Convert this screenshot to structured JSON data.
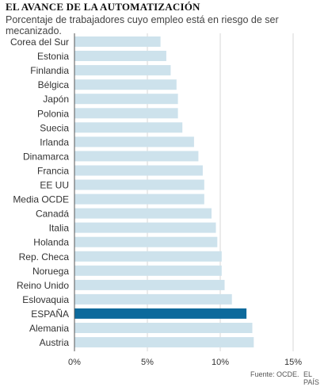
{
  "header": {
    "title": "EL AVANCE DE LA AUTOMATIZACIÓN",
    "subtitle": "Porcentaje de trabajadores cuyo empleo está en riesgo de ser mecanizado."
  },
  "footer": {
    "source": "Fuente: OCDE.",
    "brand": "EL PAÍS"
  },
  "colors": {
    "bar": "#cde2ec",
    "highlight": "#0d6a9c",
    "grid": "#d7d7d7",
    "axis": "#555555"
  },
  "chart_data": {
    "type": "bar",
    "orientation": "horizontal",
    "categories": [
      "Corea del Sur",
      "Estonia",
      "Finlandia",
      "Bélgica",
      "Japón",
      "Polonia",
      "Suecia",
      "Irlanda",
      "Dinamarca",
      "Francia",
      "EE UU",
      "Media OCDE",
      "Canadá",
      "Italia",
      "Holanda",
      "Rep. Checa",
      "Noruega",
      "Reino Unido",
      "Eslovaquia",
      "ESPAÑA",
      "Alemania",
      "Austria"
    ],
    "values": [
      5.9,
      6.3,
      6.6,
      7.0,
      7.1,
      7.1,
      7.4,
      8.2,
      8.5,
      8.8,
      8.9,
      8.9,
      9.4,
      9.7,
      9.8,
      10.1,
      10.1,
      10.3,
      10.8,
      11.8,
      12.2,
      12.3
    ],
    "highlight": "ESPAÑA",
    "xlim": [
      0,
      15
    ],
    "xticks": [
      0,
      5,
      10,
      15
    ],
    "xtick_labels": [
      "0%",
      "5%",
      "10%",
      "15%"
    ],
    "grid": true,
    "xlabel": "",
    "ylabel": ""
  }
}
